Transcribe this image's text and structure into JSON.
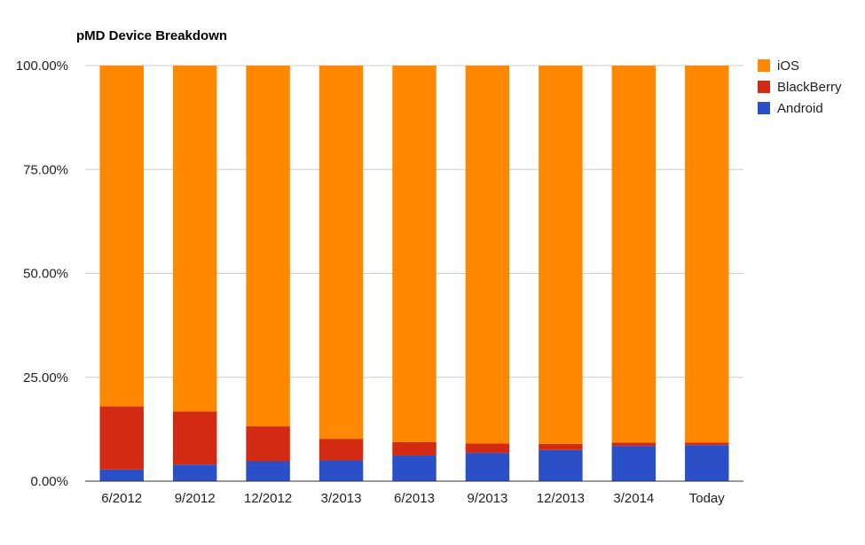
{
  "chart_data": {
    "type": "bar",
    "stacked": true,
    "title": "pMD Device Breakdown",
    "xlabel": "",
    "ylabel": "",
    "ylim": [
      0,
      100
    ],
    "y_ticks": [
      "0.00%",
      "25.00%",
      "50.00%",
      "75.00%",
      "100.00%"
    ],
    "categories": [
      "6/2012",
      "9/2012",
      "12/2012",
      "3/2013",
      "6/2013",
      "9/2013",
      "12/2013",
      "3/2014",
      "Today"
    ],
    "series": [
      {
        "name": "Android",
        "color": "#2b4fc7",
        "values": [
          2.8,
          4.0,
          4.8,
          5.0,
          6.2,
          6.8,
          7.5,
          8.5,
          8.7
        ]
      },
      {
        "name": "BlackBerry",
        "color": "#d32a14",
        "values": [
          15.2,
          12.8,
          8.4,
          5.2,
          3.2,
          2.3,
          1.5,
          0.8,
          0.6
        ]
      },
      {
        "name": "iOS",
        "color": "#ff8800",
        "values": [
          82.0,
          83.2,
          86.8,
          89.8,
          90.6,
          90.9,
          91.0,
          90.7,
          90.7
        ]
      }
    ],
    "legend": {
      "position": "right",
      "order": [
        "iOS",
        "BlackBerry",
        "Android"
      ]
    },
    "grid": true
  }
}
